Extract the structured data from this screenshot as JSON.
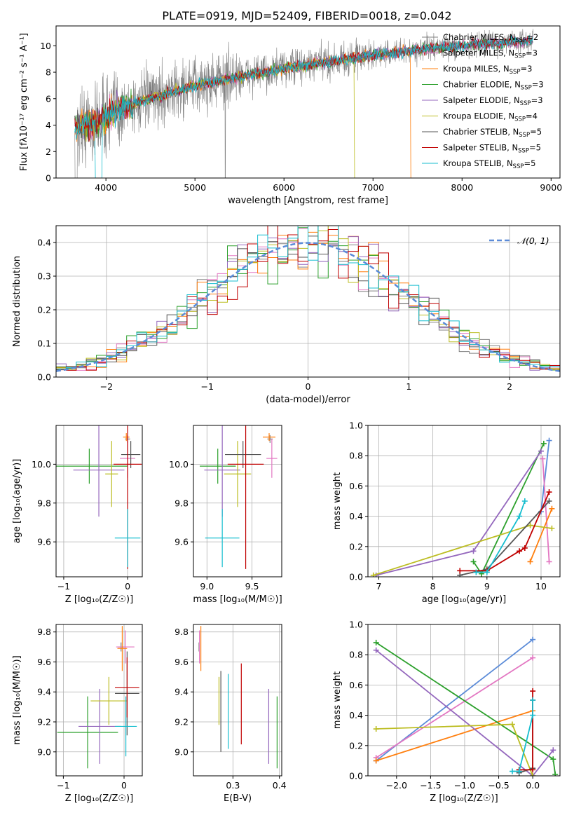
{
  "title": "PLATE=0919, MJD=52409, FIBERID=0018, z=0.042",
  "colors": {
    "data": "#808080",
    "normal": "#5b8bd8",
    "grid": "#b0b0b0",
    "models": [
      "#808080",
      "#e377c2",
      "#ff7f0e",
      "#2ca02c",
      "#9467bd",
      "#bcbd22",
      "#555555",
      "#c00000",
      "#17becf"
    ]
  },
  "legend": {
    "models": [
      "Chabrier MILES",
      "Salpeter MILES",
      "Kroupa MILES",
      "Chabrier ELODIE",
      "Salpeter ELODIE",
      "Kroupa ELODIE",
      "Chabrier STELIB",
      "Salpeter STELIB",
      "Kroupa STELIB"
    ],
    "nssp": [
      "2",
      "3",
      "3",
      "3",
      "3",
      "4",
      "5",
      "5",
      "5"
    ],
    "nssp_prefix": "N",
    "nssp_sub": "SSP",
    "normal": "𝒩(0, 1)"
  },
  "chart_data": [
    {
      "id": "spectrum",
      "type": "line",
      "xlabel": "wavelength [Angstrom, rest frame]",
      "ylabel": "Flux [fλ10⁻¹⁷ erg cm⁻² s⁻¹ A⁻¹]",
      "xlim": [
        3440,
        9100
      ],
      "ylim": [
        0,
        11.5
      ],
      "xticks": [
        4000,
        5000,
        6000,
        7000,
        8000,
        9000
      ],
      "yticks": [
        0,
        2,
        4,
        6,
        8,
        10
      ],
      "grid": false,
      "continuum": {
        "x": [
          3650,
          3700,
          3800,
          3900,
          4000,
          4100,
          4200,
          4400,
          4600,
          4800,
          5000,
          5200,
          5400,
          5600,
          5800,
          6000,
          6200,
          6400,
          6600,
          6800,
          7000,
          7200,
          7400,
          7600,
          7800,
          8000,
          8200,
          8400,
          8600,
          8800
        ],
        "y": [
          3.8,
          3.9,
          4.0,
          4.3,
          4.6,
          5.1,
          5.3,
          5.8,
          6.2,
          6.6,
          7.0,
          7.3,
          7.5,
          7.8,
          8.0,
          8.3,
          8.5,
          8.7,
          8.9,
          9.1,
          9.3,
          9.4,
          9.6,
          9.8,
          9.9,
          10.0,
          10.1,
          10.2,
          10.3,
          10.4
        ]
      },
      "dropouts": [
        {
          "model_index": 5,
          "x": 6790
        },
        {
          "model_index": 2,
          "x": 7420
        }
      ]
    },
    {
      "id": "residuals",
      "type": "step-histogram",
      "xlabel": "(data-model)/error",
      "ylabel": "Normed distribution",
      "xlim": [
        -2.5,
        2.5
      ],
      "ylim": [
        0,
        0.45
      ],
      "xticks": [
        -2,
        -1,
        0,
        1,
        2
      ],
      "yticks": [
        0.0,
        0.1,
        0.2,
        0.3,
        0.4
      ],
      "grid": true,
      "bins": 50,
      "peak_values": [
        0.42,
        0.37,
        0.38,
        0.43
      ]
    },
    {
      "id": "age-vs-Z",
      "type": "errorbar",
      "xlabel": "Z [log₁₀(Z/Z☉)]",
      "ylabel": "age  [log₁₀(age/yr)]",
      "xlim": [
        -1.12,
        0.23
      ],
      "ylim": [
        9.42,
        10.2
      ],
      "xticks": [
        -1,
        0
      ],
      "yticks": [
        9.6,
        9.8,
        10.0
      ],
      "grid": true,
      "points": [
        {
          "model_index": 0,
          "x": 0.0,
          "xerr": 0.04,
          "y": 10.13,
          "yerr": 0.02
        },
        {
          "model_index": 1,
          "x": 0.0,
          "xerr": 0.12,
          "y": 10.03,
          "yerr": 0.1
        },
        {
          "model_index": 2,
          "x": -0.02,
          "xerr": 0.05,
          "y": 10.14,
          "yerr": 0.02
        },
        {
          "model_index": 3,
          "x": -0.6,
          "xerr": 0.6,
          "y": 9.99,
          "yerr": 0.09
        },
        {
          "model_index": 4,
          "x": -0.45,
          "xerr": 0.4,
          "y": 9.97,
          "yerr": 0.24
        },
        {
          "model_index": 5,
          "x": -0.25,
          "xerr": 0.1,
          "y": 9.95,
          "yerr": 0.17
        },
        {
          "model_index": 6,
          "x": 0.05,
          "xerr": 0.15,
          "y": 10.05,
          "yerr": 0.07
        },
        {
          "model_index": 7,
          "x": 0.0,
          "xerr": 0.22,
          "y": 10.0,
          "yerr": 0.54
        },
        {
          "model_index": 8,
          "x": 0.0,
          "xerr": 0.2,
          "y": 9.62,
          "yerr": 0.15
        }
      ]
    },
    {
      "id": "age-vs-mass",
      "type": "errorbar",
      "xlabel": "mass [log₁₀(M/M☉)]",
      "ylabel": "",
      "xlim": [
        8.85,
        9.83
      ],
      "ylim": [
        9.42,
        10.2
      ],
      "xticks": [
        9.0,
        9.5
      ],
      "yticks": [
        9.6,
        9.8,
        10.0
      ],
      "grid": true,
      "points": [
        {
          "model_index": 0,
          "x": 9.7,
          "xerr": 0.03,
          "y": 10.13,
          "yerr": 0.02
        },
        {
          "model_index": 1,
          "x": 9.72,
          "xerr": 0.06,
          "y": 10.03,
          "yerr": 0.1
        },
        {
          "model_index": 2,
          "x": 9.69,
          "xerr": 0.07,
          "y": 10.14,
          "yerr": 0.02
        },
        {
          "model_index": 3,
          "x": 9.12,
          "xerr": 0.2,
          "y": 9.99,
          "yerr": 0.09
        },
        {
          "model_index": 4,
          "x": 9.17,
          "xerr": 0.2,
          "y": 9.97,
          "yerr": 0.24
        },
        {
          "model_index": 5,
          "x": 9.34,
          "xerr": 0.15,
          "y": 9.95,
          "yerr": 0.17
        },
        {
          "model_index": 6,
          "x": 9.4,
          "xerr": 0.2,
          "y": 10.05,
          "yerr": 0.07
        },
        {
          "model_index": 7,
          "x": 9.43,
          "xerr": 0.2,
          "y": 10.0,
          "yerr": 0.54
        },
        {
          "model_index": 8,
          "x": 9.17,
          "xerr": 0.19,
          "y": 9.62,
          "yerr": 0.15
        }
      ]
    },
    {
      "id": "massweight-vs-age",
      "type": "line",
      "xlabel": "age  [log₁₀(age/yr)]",
      "ylabel": "mass weight",
      "xlim": [
        6.8,
        10.35
      ],
      "ylim": [
        0,
        1
      ],
      "xticks": [
        7,
        8,
        9,
        10
      ],
      "yticks": [
        0.0,
        0.2,
        0.4,
        0.6,
        0.8,
        1.0
      ],
      "grid": true,
      "series": [
        {
          "model_index": 0,
          "x": [
            10.0,
            10.15
          ],
          "y": [
            0.43,
            0.9
          ],
          "color_override": "#5b8bd8"
        },
        {
          "model_index": 1,
          "x": [
            10.03,
            10.15
          ],
          "y": [
            0.78,
            0.1
          ]
        },
        {
          "model_index": 2,
          "x": [
            9.8,
            10.2
          ],
          "y": [
            0.1,
            0.45
          ]
        },
        {
          "model_index": 3,
          "x": [
            8.75,
            8.9,
            10.05
          ],
          "y": [
            0.1,
            0.02,
            0.88
          ]
        },
        {
          "model_index": 4,
          "x": [
            6.95,
            8.75,
            10.0
          ],
          "y": [
            0.01,
            0.17,
            0.83
          ]
        },
        {
          "model_index": 5,
          "x": [
            6.9,
            9.8,
            10.2
          ],
          "y": [
            0.01,
            0.34,
            0.32
          ]
        },
        {
          "model_index": 6,
          "x": [
            8.5,
            9.0,
            10.15
          ],
          "y": [
            0.01,
            0.05,
            0.5
          ]
        },
        {
          "model_index": 7,
          "x": [
            8.5,
            9.0,
            9.6,
            9.7,
            10.15
          ],
          "y": [
            0.04,
            0.04,
            0.17,
            0.19,
            0.56
          ]
        },
        {
          "model_index": 8,
          "x": [
            8.8,
            9.0,
            9.6,
            9.7
          ],
          "y": [
            0.03,
            0.03,
            0.4,
            0.5
          ]
        }
      ]
    },
    {
      "id": "mass-vs-Z",
      "type": "errorbar",
      "xlabel": "Z [log₁₀(Z/Z☉)]",
      "ylabel": "mass [log₁₀(M/M☉)]",
      "xlim": [
        -1.12,
        0.3
      ],
      "ylim": [
        8.84,
        9.85
      ],
      "xticks": [
        -1,
        0
      ],
      "yticks": [
        9.0,
        9.2,
        9.4,
        9.6,
        9.8
      ],
      "grid": true,
      "points": [
        {
          "model_index": 0,
          "x": -0.05,
          "xerr": 0.05,
          "y": 9.7,
          "yerr": 0.03
        },
        {
          "model_index": 1,
          "x": 0.02,
          "xerr": 0.15,
          "y": 9.7,
          "yerr": 0.11
        },
        {
          "model_index": 2,
          "x": -0.03,
          "xerr": 0.08,
          "y": 9.69,
          "yerr": 0.15
        },
        {
          "model_index": 3,
          "x": -0.6,
          "xerr": 0.5,
          "y": 9.13,
          "yerr": 0.24
        },
        {
          "model_index": 4,
          "x": -0.4,
          "xerr": 0.35,
          "y": 9.17,
          "yerr": 0.25
        },
        {
          "model_index": 5,
          "x": -0.25,
          "xerr": 0.3,
          "y": 9.34,
          "yerr": 0.16
        },
        {
          "model_index": 6,
          "x": 0.05,
          "xerr": 0.2,
          "y": 9.39,
          "yerr": 0.28
        },
        {
          "model_index": 7,
          "x": 0.05,
          "xerr": 0.2,
          "y": 9.43,
          "yerr": 0.2
        },
        {
          "model_index": 8,
          "x": 0.03,
          "xerr": 0.18,
          "y": 9.17,
          "yerr": 0.2
        }
      ]
    },
    {
      "id": "mass-vs-EBV",
      "type": "errorbar",
      "xlabel": "E(B-V)",
      "ylabel": "",
      "xlim": [
        0.215,
        0.405
      ],
      "ylim": [
        8.84,
        9.85
      ],
      "xticks": [
        0.3,
        0.4
      ],
      "yticks": [
        9.0,
        9.2,
        9.4,
        9.6,
        9.8
      ],
      "grid": true,
      "points": [
        {
          "model_index": 0,
          "x": 0.227,
          "xerr": 0,
          "y": 9.7,
          "yerr": 0.03
        },
        {
          "model_index": 1,
          "x": 0.228,
          "xerr": 0,
          "y": 9.7,
          "yerr": 0.11
        },
        {
          "model_index": 2,
          "x": 0.231,
          "xerr": 0,
          "y": 9.69,
          "yerr": 0.15
        },
        {
          "model_index": 3,
          "x": 0.395,
          "xerr": 0,
          "y": 9.13,
          "yerr": 0.24
        },
        {
          "model_index": 4,
          "x": 0.377,
          "xerr": 0,
          "y": 9.17,
          "yerr": 0.25
        },
        {
          "model_index": 5,
          "x": 0.27,
          "xerr": 0,
          "y": 9.34,
          "yerr": 0.16
        },
        {
          "model_index": 6,
          "x": 0.274,
          "xerr": 0,
          "y": 9.27,
          "yerr": 0.27
        },
        {
          "model_index": 7,
          "x": 0.318,
          "xerr": 0,
          "y": 9.32,
          "yerr": 0.27
        },
        {
          "model_index": 8,
          "x": 0.29,
          "xerr": 0,
          "y": 9.27,
          "yerr": 0.25
        }
      ]
    },
    {
      "id": "massweight-vs-Z",
      "type": "line",
      "xlabel": "Z [log₁₀(Z/Z☉)]",
      "ylabel": "mass weight",
      "xlim": [
        -2.42,
        0.4
      ],
      "ylim": [
        0,
        1
      ],
      "xticks": [
        -2.0,
        -1.5,
        -1.0,
        -0.5,
        0.0
      ],
      "yticks": [
        0.0,
        0.2,
        0.4,
        0.6,
        0.8,
        1.0
      ],
      "grid": true,
      "series": [
        {
          "model_index": 0,
          "x": [
            -2.3,
            0.0
          ],
          "y": [
            0.1,
            0.9
          ],
          "color_override": "#5b8bd8"
        },
        {
          "model_index": 1,
          "x": [
            -2.3,
            0.0
          ],
          "y": [
            0.12,
            0.78
          ]
        },
        {
          "model_index": 2,
          "x": [
            -2.3,
            0.0
          ],
          "y": [
            0.1,
            0.43
          ]
        },
        {
          "model_index": 3,
          "x": [
            -2.3,
            0.3,
            0.33
          ],
          "y": [
            0.88,
            0.11,
            0.01
          ]
        },
        {
          "model_index": 4,
          "x": [
            -2.3,
            0.0,
            0.3
          ],
          "y": [
            0.83,
            0.0,
            0.17
          ]
        },
        {
          "model_index": 5,
          "x": [
            -2.3,
            -0.3,
            0.0
          ],
          "y": [
            0.31,
            0.34,
            0.0
          ]
        },
        {
          "model_index": 6,
          "x": [
            -0.2,
            0.0,
            0.0
          ],
          "y": [
            0.02,
            0.05,
            0.5
          ]
        },
        {
          "model_index": 7,
          "x": [
            -0.2,
            0.0,
            0.0
          ],
          "y": [
            0.04,
            0.04,
            0.56
          ]
        },
        {
          "model_index": 8,
          "x": [
            -0.3,
            -0.2,
            0.0,
            0.0
          ],
          "y": [
            0.03,
            0.03,
            0.4,
            0.5
          ]
        }
      ]
    }
  ]
}
